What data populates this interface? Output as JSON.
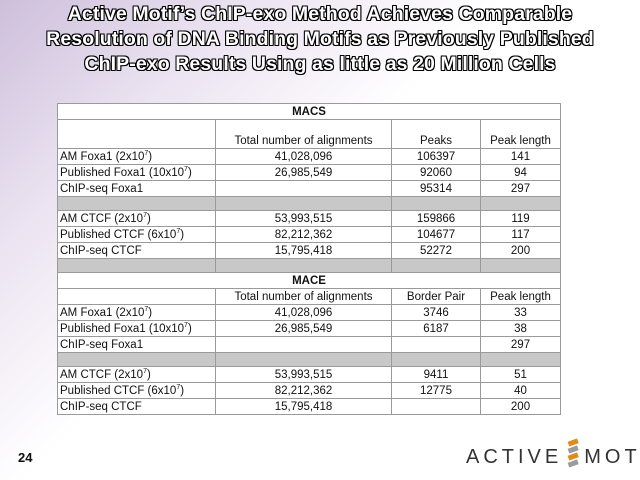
{
  "title": {
    "line1": "Active Motif’s ChIP-exo Method Achieves Comparable",
    "line2": "Resolution of DNA Binding Motifs as Previously Published",
    "line3": "ChIP-exo Results Using as little as 20 Million Cells"
  },
  "macs": {
    "heading": "MACS",
    "columns": [
      "Total number of alignments",
      "Peaks",
      "Peak length"
    ],
    "groups": [
      [
        {
          "label": "AM Foxa1 (2x10",
          "exp": "7",
          "close": ")",
          "alignments": "41,028,096",
          "value": "106397",
          "length": "141"
        },
        {
          "label": "Published Foxa1 (10x10",
          "exp": "7",
          "close": ")",
          "alignments": "26,985,549",
          "value": "92060",
          "length": "94"
        },
        {
          "label": "ChIP-seq Foxa1",
          "exp": "",
          "close": "",
          "alignments": "",
          "value": "95314",
          "length": "297"
        }
      ],
      [
        {
          "label": "AM CTCF (2x10",
          "exp": "7",
          "close": ")",
          "alignments": "53,993,515",
          "value": "159866",
          "length": "119"
        },
        {
          "label": "Published CTCF (6x10",
          "exp": "7",
          "close": ")",
          "alignments": "82,212,362",
          "value": "104677",
          "length": "117"
        },
        {
          "label": "ChIP-seq CTCF",
          "exp": "",
          "close": "",
          "alignments": "15,795,418",
          "value": "52272",
          "length": "200"
        }
      ]
    ]
  },
  "mace": {
    "heading": "MACE",
    "columns": [
      "Total number of alignments",
      "Border Pair",
      "Peak length"
    ],
    "groups": [
      [
        {
          "label": "AM Foxa1 (2x10",
          "exp": "7",
          "close": ")",
          "alignments": "41,028,096",
          "value": "3746",
          "length": "33"
        },
        {
          "label": "Published Foxa1 (10x10",
          "exp": "7",
          "close": ")",
          "alignments": "26,985,549",
          "value": "6187",
          "length": "38"
        },
        {
          "label": "ChIP-seq Foxa1",
          "exp": "",
          "close": "",
          "alignments": "",
          "value": "",
          "length": "297"
        }
      ],
      [
        {
          "label": "AM CTCF (2x10",
          "exp": "7",
          "close": ")",
          "alignments": "53,993,515",
          "value": "9411",
          "length": "51"
        },
        {
          "label": "Published CTCF (6x10",
          "exp": "7",
          "close": ")",
          "alignments": "82,212,362",
          "value": "12775",
          "length": "40"
        },
        {
          "label": "ChIP-seq CTCF",
          "exp": "",
          "close": "",
          "alignments": "15,795,418",
          "value": "",
          "length": "200"
        }
      ]
    ]
  },
  "footer": {
    "page_number": "24",
    "logo_left": "ACTIVE",
    "logo_right": "MOTIF",
    "logo_tm": "®"
  }
}
